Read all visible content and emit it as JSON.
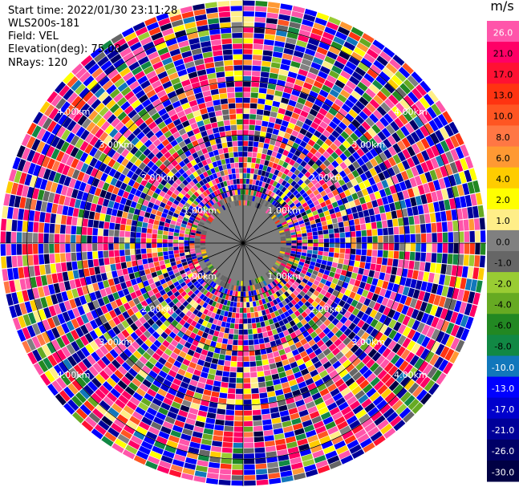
{
  "header": {
    "start_time": "Start time: 2022/01/30 23:11:28",
    "instrument": "WLS200s-181",
    "field": "Field: VEL",
    "elevation": "Elevation(deg): 75.00",
    "nrays": "NRays: 120"
  },
  "colorbar": {
    "unit": "m/s",
    "ticks": [
      "26.0",
      "21.0",
      "17.0",
      "13.0",
      "10.0",
      "8.0",
      "6.0",
      "4.0",
      "2.0",
      "1.0",
      "0.0",
      "-1.0",
      "-2.0",
      "-4.0",
      "-6.0",
      "-8.0",
      "-10.0",
      "-13.0",
      "-17.0",
      "-21.0",
      "-26.0",
      "-30.0"
    ],
    "colors": [
      "#ff55aa",
      "#ff0066",
      "#ff1133",
      "#ff3311",
      "#ff5522",
      "#ff7744",
      "#ff9933",
      "#ffcc00",
      "#ffff00",
      "#ffee88",
      "#808080",
      "#666666",
      "#99cc33",
      "#66aa22",
      "#228822",
      "#118844",
      "#1177bb",
      "#0000ff",
      "#0000cc",
      "#000099",
      "#000066",
      "#000044"
    ]
  },
  "chart_data": {
    "type": "heatmap",
    "title": "",
    "field": "VEL",
    "units": "m/s",
    "projection": "polar (PPI)",
    "elevation_deg": 75.0,
    "nrays": 120,
    "value_range": [
      -30.0,
      26.0
    ],
    "range_rings_km": [
      1.0,
      2.0,
      3.0,
      4.0
    ],
    "ring_labels": [
      "1.00km",
      "2.00km",
      "3.00km",
      "4.00km"
    ],
    "max_range_km": 4.5,
    "gates_per_ray": 45,
    "near_range_value": 0.0,
    "near_range_extent_km": 0.9,
    "grid_spokes": 16,
    "description_of_field": "noisy, near-random velocity values across all gates beyond ~0.9 km; near range dominated by 0 m/s (gray)"
  }
}
